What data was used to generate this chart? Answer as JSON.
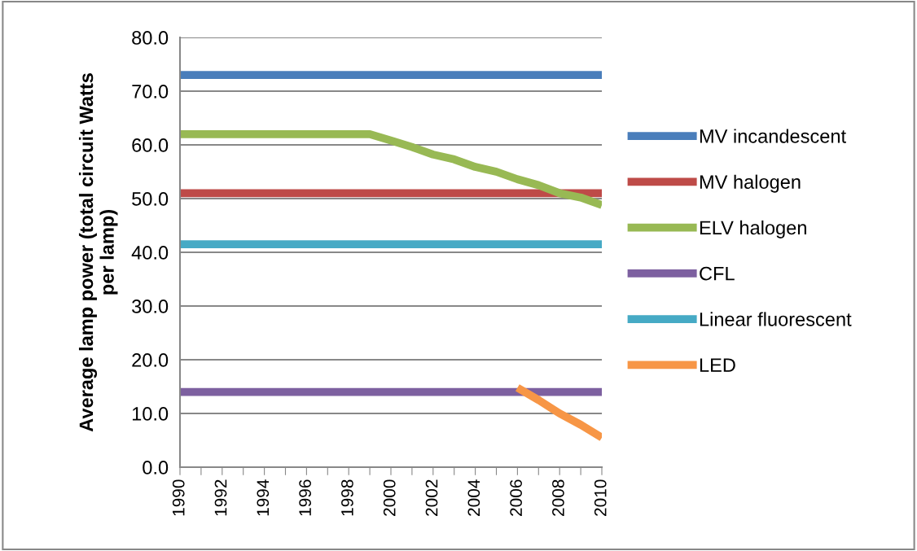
{
  "chart_data": {
    "type": "line",
    "ylabel": "Average lamp power (total circuit Watts per lamp)",
    "x": [
      1990,
      1991,
      1992,
      1993,
      1994,
      1995,
      1996,
      1997,
      1998,
      1999,
      2000,
      2001,
      2002,
      2003,
      2004,
      2005,
      2006,
      2007,
      2008,
      2009,
      2010
    ],
    "xlim": [
      1990,
      2010
    ],
    "xticks": [
      1990,
      {
        "value": 1991,
        "label": null
      },
      1992,
      {
        "value": 1993,
        "label": null
      },
      1994,
      {
        "value": 1995,
        "label": null
      },
      1996,
      {
        "value": 1997,
        "label": null
      },
      1998,
      {
        "value": 1999,
        "label": null
      },
      2000,
      {
        "value": 2001,
        "label": null
      },
      2002,
      {
        "value": 2003,
        "label": null
      },
      2004,
      {
        "value": 2005,
        "label": null
      },
      2006,
      {
        "value": 2007,
        "label": null
      },
      2008,
      {
        "value": 2009,
        "label": null
      },
      2010
    ],
    "ylim": [
      0,
      80
    ],
    "yticks": [
      {
        "value": 0,
        "label": "0.0"
      },
      {
        "value": 10,
        "label": "10.0"
      },
      {
        "value": 20,
        "label": "20.0"
      },
      {
        "value": 30,
        "label": "30.0"
      },
      {
        "value": 40,
        "label": "40.0"
      },
      {
        "value": 50,
        "label": "50.0"
      },
      {
        "value": 60,
        "label": "60.0"
      },
      {
        "value": 70,
        "label": "70.0"
      },
      {
        "value": 80,
        "label": "80.0"
      }
    ],
    "grid": "y",
    "legend": "right",
    "marker": "none",
    "line_style": "solid",
    "series": [
      {
        "name": "MV incandescent",
        "color": "#4a7ebb",
        "values": [
          73,
          73,
          73,
          73,
          73,
          73,
          73,
          73,
          73,
          73,
          73,
          73,
          73,
          73,
          73,
          73,
          73,
          73,
          73,
          73,
          73
        ]
      },
      {
        "name": "MV halogen",
        "color": "#be4b48",
        "values": [
          51,
          51,
          51,
          51,
          51,
          51,
          51,
          51,
          51,
          51,
          51,
          51,
          51,
          51,
          51,
          51,
          51,
          51,
          51,
          51,
          51
        ]
      },
      {
        "name": "ELV halogen",
        "color": "#98b954",
        "values": [
          62,
          62,
          62,
          62,
          62,
          62,
          62,
          62,
          62,
          62,
          60.8,
          59.6,
          58.2,
          57.3,
          55.9,
          55.0,
          53.6,
          52.5,
          51.0,
          50.2,
          48.8
        ]
      },
      {
        "name": "CFL",
        "color": "#7d60a0",
        "values": [
          14,
          14,
          14,
          14,
          14,
          14,
          14,
          14,
          14,
          14,
          14,
          14,
          14,
          14,
          14,
          14,
          14,
          14,
          14,
          14,
          14
        ]
      },
      {
        "name": "Linear fluorescent",
        "color": "#46aac5",
        "values": [
          41.5,
          41.5,
          41.5,
          41.5,
          41.5,
          41.5,
          41.5,
          41.5,
          41.5,
          41.5,
          41.5,
          41.5,
          41.5,
          41.5,
          41.5,
          41.5,
          41.5,
          41.5,
          41.5,
          41.5,
          41.5
        ]
      },
      {
        "name": "LED",
        "color": "#f79646",
        "values": [
          null,
          null,
          null,
          null,
          null,
          null,
          null,
          null,
          null,
          null,
          null,
          null,
          null,
          null,
          null,
          null,
          14.8,
          12.5,
          10.0,
          7.9,
          5.5
        ]
      }
    ]
  }
}
